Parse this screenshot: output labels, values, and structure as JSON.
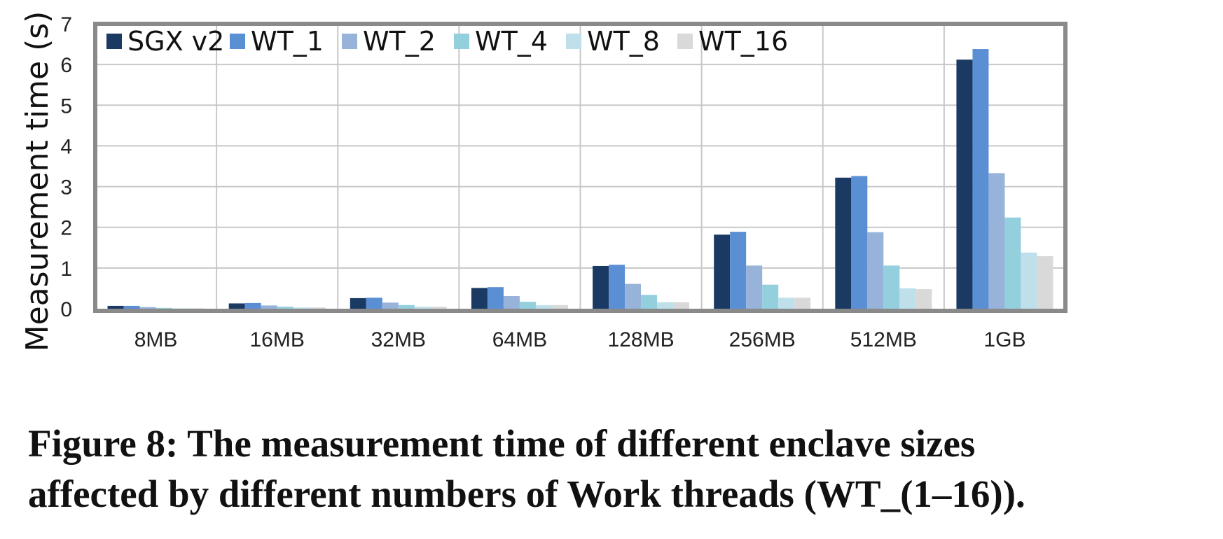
{
  "caption": {
    "line1": "Figure 8: The measurement time of different enclave sizes",
    "line2": "affected by different numbers of Work threads (WT_(1–16))."
  },
  "chart_data": {
    "type": "bar",
    "title": "",
    "xlabel": "",
    "ylabel": "Measurement time (s)",
    "ylim": [
      0,
      7
    ],
    "yticks": [
      "0",
      "1",
      "2",
      "3",
      "4",
      "5",
      "6",
      "7"
    ],
    "grid": true,
    "legend_position": "top-left",
    "categories": [
      "8MB",
      "16MB",
      "32MB",
      "64MB",
      "128MB",
      "256MB",
      "512MB",
      "1GB"
    ],
    "series": [
      {
        "name": "SGX v2",
        "color": "#1b3a63",
        "values": [
          0.07,
          0.13,
          0.26,
          0.51,
          1.05,
          1.82,
          3.22,
          6.12
        ]
      },
      {
        "name": "WT_1",
        "color": "#5b8fd4",
        "values": [
          0.07,
          0.14,
          0.27,
          0.53,
          1.08,
          1.89,
          3.26,
          6.38
        ]
      },
      {
        "name": "WT_2",
        "color": "#98b3da",
        "values": [
          0.04,
          0.08,
          0.15,
          0.31,
          0.61,
          1.06,
          1.88,
          3.33
        ]
      },
      {
        "name": "WT_4",
        "color": "#93cfdd",
        "values": [
          0.02,
          0.05,
          0.09,
          0.17,
          0.34,
          0.59,
          1.06,
          2.24
        ]
      },
      {
        "name": "WT_8",
        "color": "#bfe0ea",
        "values": [
          0.01,
          0.03,
          0.05,
          0.09,
          0.16,
          0.27,
          0.5,
          1.38
        ]
      },
      {
        "name": "WT_16",
        "color": "#d9d9d9",
        "values": [
          0.01,
          0.03,
          0.05,
          0.09,
          0.16,
          0.27,
          0.48,
          1.29
        ]
      }
    ]
  }
}
